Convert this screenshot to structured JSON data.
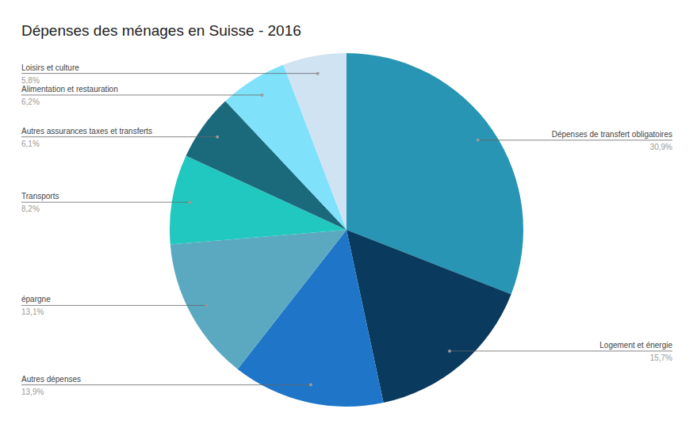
{
  "chart_data": {
    "type": "pie",
    "title": "Dépenses des ménages en Suisse - 2016",
    "categories": [
      "Dépenses de transfert obligatoires",
      "Logement et énergie",
      "Autres dépenses",
      "épargne",
      "Transports",
      "Autres assurances taxes et transferts",
      "Alimentation et restauration",
      "Loisirs et culture"
    ],
    "values": [
      30.9,
      15.7,
      13.9,
      13.1,
      8.2,
      6.1,
      6.2,
      5.8
    ],
    "value_labels": [
      "30,9%",
      "15,7%",
      "13,9%",
      "13,1%",
      "8,2%",
      "6,1%",
      "6,2%",
      "5,8%"
    ],
    "colors": [
      "#2795b3",
      "#0a3a5e",
      "#1f76c8",
      "#5aa9c1",
      "#21c8bf",
      "#1a6a7c",
      "#80e1fa",
      "#cfe3f3"
    ],
    "data_labels": true
  }
}
